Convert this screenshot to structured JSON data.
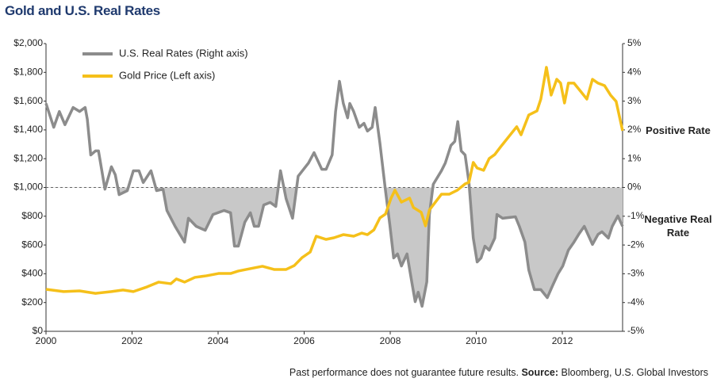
{
  "chart_data": {
    "type": "line",
    "title": "Gold and U.S. Real Rates",
    "xlim": [
      2000,
      2013.4
    ],
    "xticks": [
      2000,
      2002,
      2004,
      2006,
      2008,
      2010,
      2012
    ],
    "ylim": [
      0,
      2000
    ],
    "yticks": [
      {
        "value": 0,
        "label": "$0"
      },
      {
        "value": 200,
        "label": "$200"
      },
      {
        "value": 400,
        "label": "$400"
      },
      {
        "value": 600,
        "label": "$600"
      },
      {
        "value": 800,
        "label": "$800"
      },
      {
        "value": 1000,
        "label": "$1,000"
      },
      {
        "value": 1200,
        "label": "$1,200"
      },
      {
        "value": 1400,
        "label": "$1,400"
      },
      {
        "value": 1600,
        "label": "$1,600"
      },
      {
        "value": 1800,
        "label": "$1,800"
      },
      {
        "value": 2000,
        "label": "$2,000"
      }
    ],
    "y2lim": [
      -5,
      5
    ],
    "y2ticks": [
      {
        "value": -5,
        "label": "-5%"
      },
      {
        "value": -4,
        "label": "-4%"
      },
      {
        "value": -3,
        "label": "-3%"
      },
      {
        "value": -2,
        "label": "-2%"
      },
      {
        "value": -1,
        "label": "-1%"
      },
      {
        "value": 0,
        "label": "0%"
      },
      {
        "value": 1,
        "label": "1%"
      },
      {
        "value": 2,
        "label": "2%"
      },
      {
        "value": 3,
        "label": "3%"
      },
      {
        "value": 4,
        "label": "4%"
      },
      {
        "value": 5,
        "label": "5%"
      }
    ],
    "legend": "top-left",
    "series": [
      {
        "name": "U.S. Real Rates (Right axis)",
        "color": "#8c8c8c",
        "axis": "y2",
        "shade_negative": "#c8c8c8",
        "x": [
          2000.0,
          2000.18,
          2000.31,
          2000.44,
          2000.63,
          2000.78,
          2000.91,
          2000.96,
          2001.04,
          2001.15,
          2001.22,
          2001.37,
          2001.52,
          2001.61,
          2001.7,
          2001.89,
          2002.03,
          2002.16,
          2002.26,
          2002.44,
          2002.57,
          2002.72,
          2002.81,
          2003.0,
          2003.22,
          2003.31,
          2003.49,
          2003.7,
          2003.88,
          2004.14,
          2004.29,
          2004.38,
          2004.47,
          2004.62,
          2004.75,
          2004.84,
          2004.94,
          2005.06,
          2005.21,
          2005.34,
          2005.45,
          2005.58,
          2005.73,
          2005.86,
          2006.1,
          2006.23,
          2006.41,
          2006.51,
          2006.65,
          2006.73,
          2006.82,
          2006.91,
          2007.01,
          2007.06,
          2007.15,
          2007.28,
          2007.39,
          2007.47,
          2007.58,
          2007.65,
          2007.76,
          2007.89,
          2007.99,
          2008.08,
          2008.17,
          2008.26,
          2008.39,
          2008.5,
          2008.58,
          2008.65,
          2008.74,
          2008.85,
          2008.91,
          2009.0,
          2009.19,
          2009.28,
          2009.41,
          2009.5,
          2009.57,
          2009.65,
          2009.74,
          2009.83,
          2009.93,
          2010.02,
          2010.11,
          2010.2,
          2010.3,
          2010.43,
          2010.48,
          2010.61,
          2010.91,
          2011.0,
          2011.13,
          2011.22,
          2011.35,
          2011.5,
          2011.65,
          2011.77,
          2011.9,
          2012.01,
          2012.14,
          2012.27,
          2012.38,
          2012.51,
          2012.7,
          2012.83,
          2012.92,
          2013.07,
          2013.16,
          2013.29,
          2013.4
        ],
        "values": [
          2.92,
          2.09,
          2.64,
          2.18,
          2.78,
          2.64,
          2.78,
          2.37,
          1.13,
          1.27,
          1.27,
          -0.06,
          0.72,
          0.44,
          -0.25,
          -0.11,
          0.58,
          0.58,
          0.17,
          0.58,
          -0.11,
          -0.06,
          -0.8,
          -1.35,
          -1.9,
          -1.07,
          -1.35,
          -1.49,
          -0.94,
          -0.8,
          -0.88,
          -2.04,
          -2.04,
          -1.21,
          -0.88,
          -1.35,
          -1.35,
          -0.61,
          -0.52,
          -0.66,
          0.58,
          -0.39,
          -1.07,
          0.39,
          0.85,
          1.21,
          0.63,
          0.63,
          1.13,
          2.64,
          3.69,
          2.92,
          2.42,
          2.92,
          2.64,
          2.09,
          2.23,
          1.96,
          2.09,
          2.78,
          1.54,
          -0.11,
          -1.29,
          -2.45,
          -2.31,
          -2.73,
          -2.31,
          -3.28,
          -3.97,
          -3.64,
          -4.13,
          -3.28,
          -0.94,
          0.11,
          0.58,
          0.85,
          1.46,
          1.6,
          2.29,
          1.27,
          1.13,
          0.17,
          -1.76,
          -2.59,
          -2.45,
          -2.04,
          -2.18,
          -1.76,
          -0.94,
          -1.07,
          -1.02,
          -1.35,
          -1.9,
          -2.87,
          -3.55,
          -3.55,
          -3.83,
          -3.42,
          -3.0,
          -2.73,
          -2.18,
          -1.9,
          -1.63,
          -1.35,
          -1.98,
          -1.63,
          -1.54,
          -1.76,
          -1.35,
          -0.99,
          -1.35
        ]
      },
      {
        "name": "Gold Price (Left axis)",
        "color": "#f5c01a",
        "axis": "y",
        "x": [
          2000.0,
          2000.41,
          2000.78,
          2001.15,
          2001.52,
          2001.79,
          2002.03,
          2002.35,
          2002.62,
          2002.9,
          2003.03,
          2003.22,
          2003.46,
          2003.73,
          2004.01,
          2004.29,
          2004.47,
          2004.84,
          2005.03,
          2005.3,
          2005.58,
          2005.77,
          2005.95,
          2006.14,
          2006.28,
          2006.51,
          2006.69,
          2006.91,
          2007.15,
          2007.34,
          2007.47,
          2007.62,
          2007.76,
          2007.89,
          2008.02,
          2008.11,
          2008.26,
          2008.45,
          2008.54,
          2008.72,
          2008.82,
          2008.91,
          2009.19,
          2009.37,
          2009.56,
          2009.74,
          2009.83,
          2009.93,
          2010.02,
          2010.17,
          2010.3,
          2010.43,
          2010.57,
          2010.76,
          2010.94,
          2011.04,
          2011.22,
          2011.41,
          2011.5,
          2011.63,
          2011.74,
          2011.87,
          2011.96,
          2012.05,
          2012.14,
          2012.27,
          2012.42,
          2012.57,
          2012.7,
          2012.83,
          2012.98,
          2013.12,
          2013.25,
          2013.4
        ],
        "values": [
          292,
          276,
          281,
          264,
          276,
          287,
          276,
          309,
          342,
          331,
          364,
          342,
          375,
          386,
          402,
          402,
          419,
          441,
          452,
          430,
          430,
          457,
          512,
          551,
          661,
          639,
          650,
          672,
          661,
          683,
          672,
          705,
          788,
          815,
          926,
          981,
          898,
          926,
          860,
          827,
          733,
          843,
          953,
          953,
          981,
          1025,
          1036,
          1174,
          1135,
          1119,
          1201,
          1229,
          1284,
          1355,
          1422,
          1366,
          1504,
          1532,
          1614,
          1835,
          1642,
          1752,
          1725,
          1587,
          1725,
          1725,
          1670,
          1614,
          1752,
          1725,
          1708,
          1642,
          1598,
          1394
        ]
      }
    ],
    "annotations": [
      "Positive Rate",
      "Negative Real Rate"
    ],
    "footer": {
      "note": "Past performance does not guarantee future results.",
      "source_label": "Source:",
      "source": "Bloomberg, U.S. Global Investors"
    }
  }
}
